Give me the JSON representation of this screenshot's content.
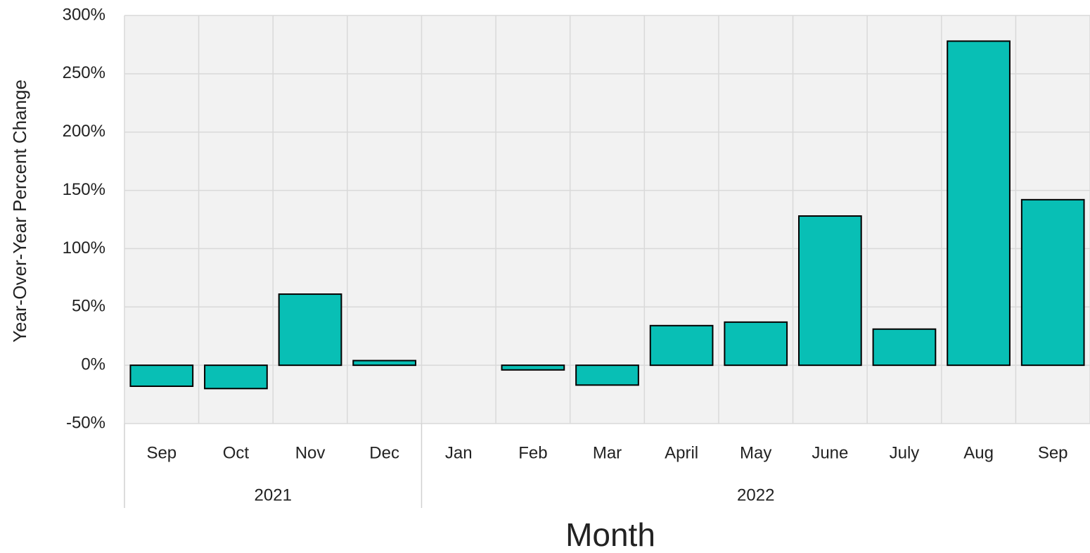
{
  "chart_data": {
    "type": "bar",
    "y_label": "Year-Over-Year Percent Change",
    "x_label": "Month",
    "color": "#08bfb5",
    "grid": true,
    "ylim": [
      -50,
      300
    ],
    "yticks": [
      {
        "value": -50,
        "label": "-50%"
      },
      {
        "value": 0,
        "label": "0%"
      },
      {
        "value": 50,
        "label": "50%"
      },
      {
        "value": 100,
        "label": "100%"
      },
      {
        "value": 150,
        "label": "150%"
      },
      {
        "value": 200,
        "label": "200%"
      },
      {
        "value": 250,
        "label": "250%"
      },
      {
        "value": 300,
        "label": "300%"
      }
    ],
    "groups": [
      {
        "label": "2021",
        "categories": [
          "Sep",
          "Oct",
          "Nov",
          "Dec"
        ],
        "values": [
          -18,
          -20,
          61,
          4
        ]
      },
      {
        "label": "2022",
        "categories": [
          "Jan",
          "Feb",
          "Mar",
          "April",
          "May",
          "June",
          "July",
          "Aug",
          "Sep"
        ],
        "values": [
          null,
          -4,
          -17,
          34,
          37,
          128,
          31,
          278,
          142
        ]
      }
    ]
  }
}
